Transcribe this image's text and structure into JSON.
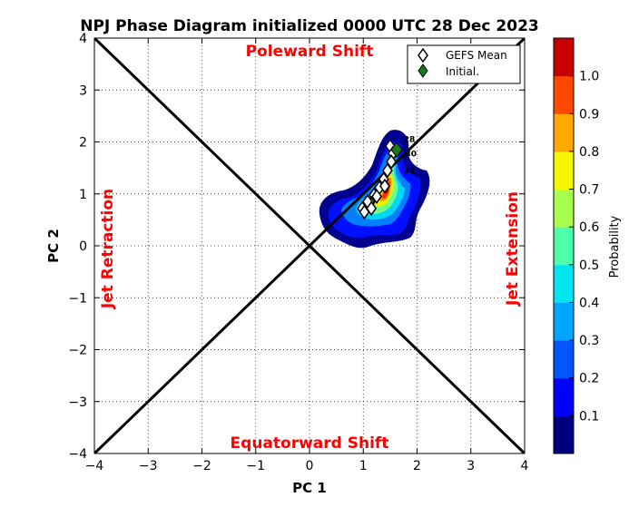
{
  "chart_data": {
    "type": "scatter",
    "title": "NPJ Phase Diagram initialized 0000 UTC 28 Dec 2023",
    "xlabel": "PC 1",
    "ylabel": "PC 2",
    "xlim": [
      -4,
      4
    ],
    "ylim": [
      -4,
      4
    ],
    "x_ticks": [
      "−4",
      "−3",
      "−2",
      "−1",
      "0",
      "1",
      "2",
      "3",
      "4"
    ],
    "y_ticks": [
      "−4",
      "−3",
      "−2",
      "−1",
      "0",
      "1",
      "2",
      "3",
      "4"
    ],
    "grid": "dotted",
    "quadrant_labels": {
      "top": "Poleward Shift",
      "bottom": "Equatorward Shift",
      "left": "Jet Retraction",
      "right": "Jet Extension"
    },
    "legend": {
      "placement": "top-right",
      "entries": [
        {
          "label": "GEFS Mean",
          "marker": "diamond",
          "color": "#ffffff"
        },
        {
          "label": "Initial.",
          "marker": "diamond",
          "color": "#1a7a1a"
        }
      ]
    },
    "initial_point": {
      "x": 1.62,
      "y": 1.85
    },
    "gefs_mean_track": [
      {
        "x": 1.5,
        "y": 1.92
      },
      {
        "x": 1.55,
        "y": 1.78
      },
      {
        "x": 1.52,
        "y": 1.62
      },
      {
        "x": 1.45,
        "y": 1.45
      },
      {
        "x": 1.38,
        "y": 1.28
      },
      {
        "x": 1.3,
        "y": 1.12
      },
      {
        "x": 1.2,
        "y": 0.98
      },
      {
        "x": 1.08,
        "y": 0.85
      },
      {
        "x": 0.98,
        "y": 0.72
      },
      {
        "x": 1.02,
        "y": 0.65
      },
      {
        "x": 1.15,
        "y": 0.72
      },
      {
        "x": 1.25,
        "y": 0.95
      },
      {
        "x": 1.4,
        "y": 1.15
      }
    ],
    "day_labels": [
      {
        "text": "28",
        "x": 1.75,
        "y": 2.0
      },
      {
        "text": "30",
        "x": 1.78,
        "y": 1.72
      },
      {
        "text": "31",
        "x": 1.75,
        "y": 1.4
      }
    ],
    "colorbar": {
      "label": "Probability",
      "ticks": [
        "0.1",
        "0.2",
        "0.3",
        "0.4",
        "0.5",
        "0.6",
        "0.7",
        "0.8",
        "0.9",
        "1.0"
      ],
      "colors": [
        "#00007f",
        "#0000ff",
        "#0055ff",
        "#00a5ff",
        "#00e6f0",
        "#4dffaa",
        "#a8ff4f",
        "#f5f900",
        "#ffa800",
        "#ff4800",
        "#c80000"
      ]
    }
  }
}
